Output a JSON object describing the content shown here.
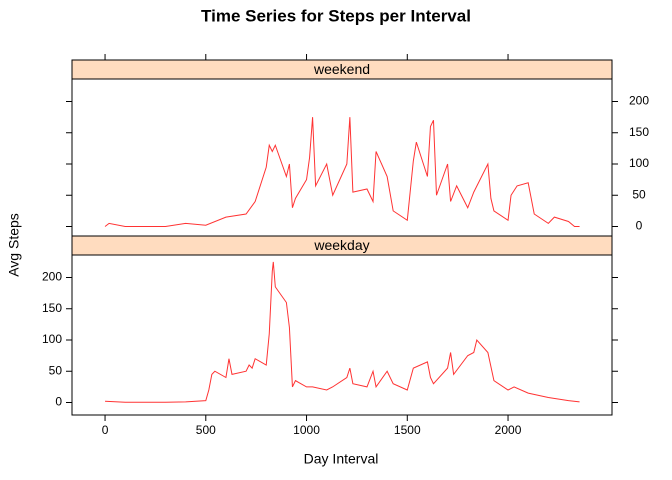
{
  "chart_data": {
    "type": "line",
    "title": "Time Series for Steps per Interval",
    "xlabel": "Day Interval",
    "ylabel": "Avg Steps",
    "xlim": [
      -164,
      2516
    ],
    "ylim": [
      -20,
      236
    ],
    "xticks": [
      0,
      500,
      1000,
      1500,
      2000
    ],
    "yticks": [
      0,
      50,
      100,
      150,
      200
    ],
    "strip_color": "#ffdcbf",
    "series": [
      {
        "name": "weekend",
        "color": "#ff3333",
        "x": [
          0,
          20,
          100,
          300,
          400,
          500,
          600,
          700,
          745,
          800,
          815,
          830,
          845,
          900,
          915,
          930,
          945,
          1000,
          1015,
          1030,
          1045,
          1100,
          1130,
          1200,
          1215,
          1230,
          1300,
          1330,
          1345,
          1400,
          1430,
          1500,
          1530,
          1545,
          1600,
          1615,
          1630,
          1645,
          1700,
          1715,
          1745,
          1800,
          1830,
          1900,
          1915,
          1930,
          2000,
          2015,
          2045,
          2100,
          2130,
          2200,
          2230,
          2300,
          2330,
          2355
        ],
        "values": [
          0,
          5,
          0,
          0,
          5,
          2,
          15,
          20,
          40,
          95,
          130,
          120,
          130,
          80,
          100,
          30,
          45,
          75,
          110,
          175,
          65,
          100,
          50,
          100,
          175,
          55,
          60,
          40,
          120,
          80,
          25,
          10,
          105,
          135,
          80,
          160,
          170,
          50,
          100,
          40,
          65,
          30,
          55,
          100,
          45,
          25,
          10,
          50,
          65,
          70,
          20,
          5,
          15,
          8,
          0,
          0
        ]
      },
      {
        "name": "weekday",
        "color": "#ff3333",
        "x": [
          0,
          100,
          200,
          300,
          400,
          500,
          515,
          530,
          545,
          600,
          615,
          630,
          700,
          715,
          730,
          745,
          800,
          815,
          830,
          835,
          845,
          900,
          915,
          930,
          945,
          1000,
          1030,
          1100,
          1130,
          1200,
          1215,
          1230,
          1300,
          1330,
          1345,
          1400,
          1430,
          1500,
          1530,
          1600,
          1615,
          1630,
          1700,
          1715,
          1730,
          1800,
          1830,
          1845,
          1900,
          1930,
          2000,
          2030,
          2100,
          2200,
          2300,
          2355
        ],
        "values": [
          2,
          0.5,
          0.3,
          0.5,
          1,
          3,
          20,
          45,
          50,
          40,
          70,
          45,
          50,
          60,
          55,
          70,
          60,
          110,
          210,
          225,
          185,
          160,
          120,
          25,
          35,
          25,
          25,
          20,
          25,
          40,
          55,
          30,
          25,
          50,
          25,
          50,
          30,
          20,
          55,
          65,
          40,
          30,
          55,
          80,
          45,
          75,
          80,
          100,
          80,
          35,
          20,
          25,
          15,
          8,
          3,
          1
        ]
      }
    ]
  }
}
